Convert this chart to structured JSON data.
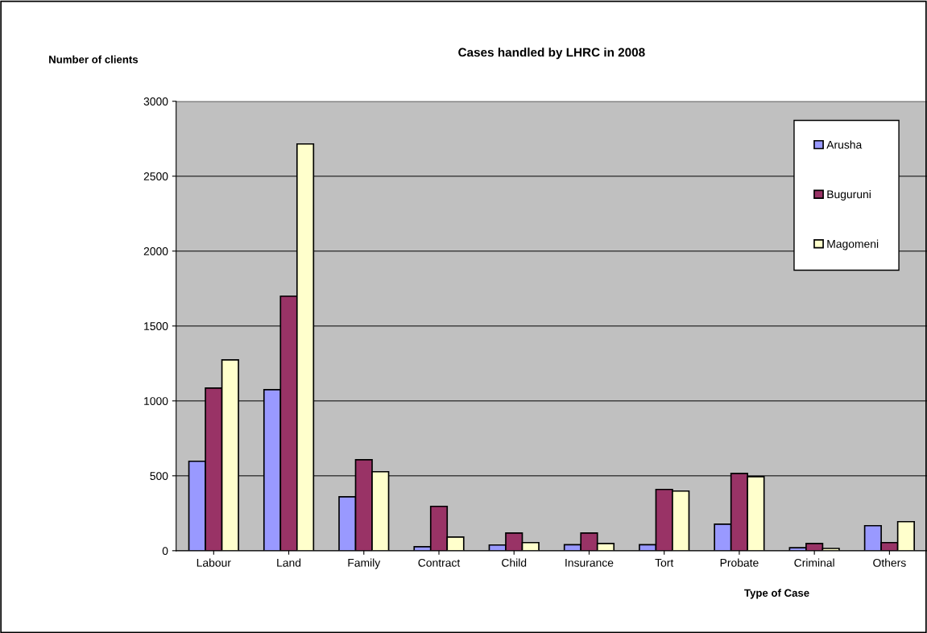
{
  "chart_data": {
    "type": "bar",
    "title": "Cases handled by LHRC in 2008",
    "xlabel": "Type of Case",
    "ylabel": "Number of clients",
    "categories": [
      "Labour",
      "Land",
      "Family",
      "Contract",
      "Child",
      "Insurance",
      "Tort",
      "Probate",
      "Criminal",
      "Others"
    ],
    "series": [
      {
        "name": "Arusha",
        "color": "#9999ff",
        "values": [
          597,
          1075,
          360,
          27,
          38,
          40,
          40,
          177,
          20,
          167
        ]
      },
      {
        "name": "Buguruni",
        "color": "#993366",
        "values": [
          1086,
          1699,
          607,
          296,
          118,
          118,
          409,
          516,
          48,
          54
        ]
      },
      {
        "name": "Magomeni",
        "color": "#ffffcc",
        "values": [
          1274,
          2715,
          527,
          91,
          54,
          48,
          398,
          494,
          15,
          194
        ]
      }
    ],
    "ylim": [
      0,
      3000
    ],
    "yticks": [
      0,
      500,
      1000,
      1500,
      2000,
      2500,
      3000
    ],
    "grid": "y",
    "legend": "top right"
  }
}
